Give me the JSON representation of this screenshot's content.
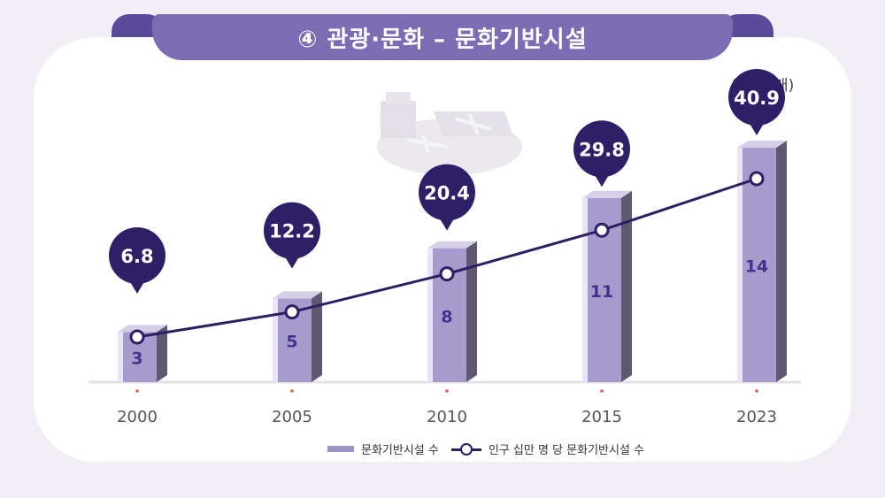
{
  "title": "④ 관광·문화 – 문화기반시설",
  "unit": "(단위: 개)",
  "colors": {
    "bar_front": "#a59ccd",
    "bar_side": "#5e5870",
    "bar_top": "#d5d0e8",
    "bar_highlight": "#e9e4f6",
    "pin": "#2f1f66",
    "line": "#2d1d63",
    "bar_label": "#4b2f8f",
    "title_bg": "#7b6cb3"
  },
  "chart_data": {
    "type": "bar",
    "categories": [
      "2000",
      "2005",
      "2010",
      "2015",
      "2023"
    ],
    "series": [
      {
        "name": "문화기반시설 수",
        "type": "bar",
        "values": [
          3,
          5,
          8,
          11,
          14
        ]
      },
      {
        "name": "인구 십만 명 당 문화기반시설 수",
        "type": "line",
        "values": [
          6.8,
          12.2,
          20.4,
          29.8,
          40.9
        ]
      }
    ],
    "legend_position": "bottom-center",
    "grid": false
  }
}
